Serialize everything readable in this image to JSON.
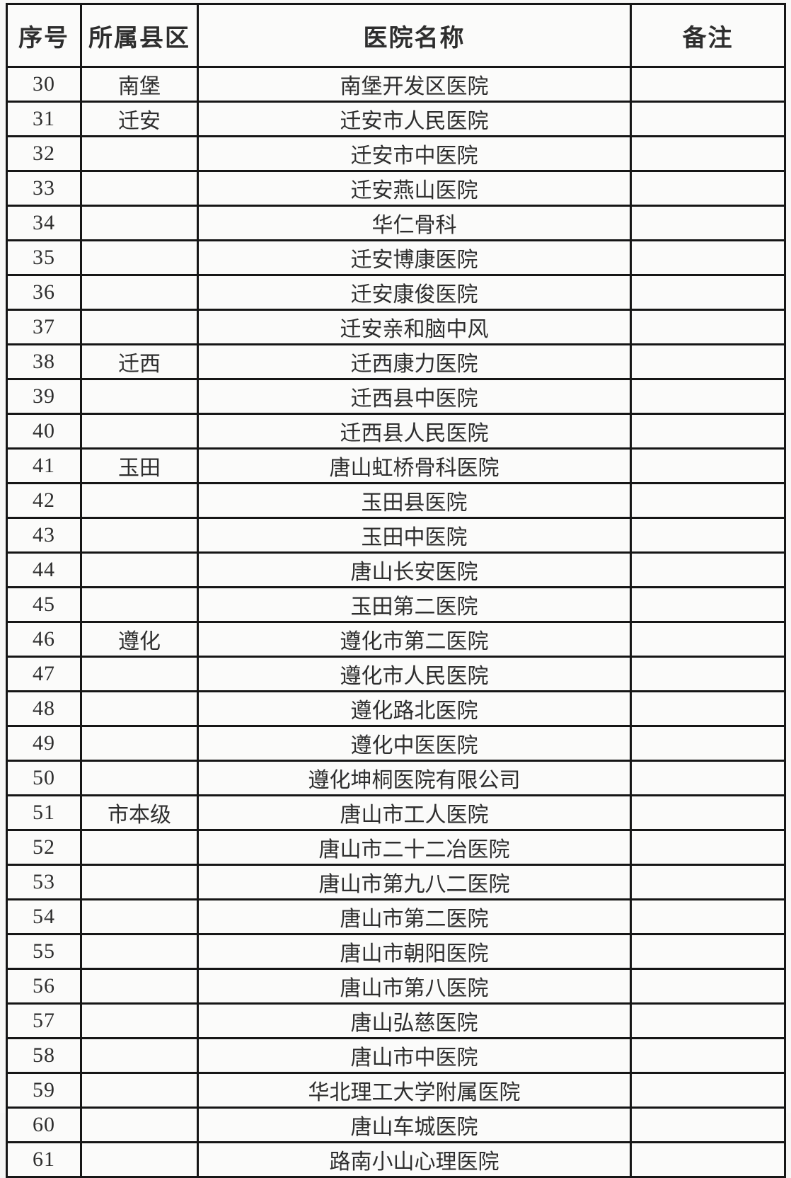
{
  "table": {
    "colors": {
      "border": "#161616",
      "text": "#2e2e2e",
      "background": "#fbfbfa"
    },
    "columns": [
      {
        "key": "index",
        "label": "序号"
      },
      {
        "key": "county",
        "label": "所属县区"
      },
      {
        "key": "hospital",
        "label": "医院名称"
      },
      {
        "key": "remark",
        "label": "备注"
      }
    ],
    "rows": [
      {
        "index": "30",
        "county": "南堡",
        "hospital": "南堡开发区医院",
        "remark": ""
      },
      {
        "index": "31",
        "county": "迁安",
        "hospital": "迁安市人民医院",
        "remark": ""
      },
      {
        "index": "32",
        "county": "",
        "hospital": "迁安市中医院",
        "remark": ""
      },
      {
        "index": "33",
        "county": "",
        "hospital": "迁安燕山医院",
        "remark": ""
      },
      {
        "index": "34",
        "county": "",
        "hospital": "华仁骨科",
        "remark": ""
      },
      {
        "index": "35",
        "county": "",
        "hospital": "迁安博康医院",
        "remark": ""
      },
      {
        "index": "36",
        "county": "",
        "hospital": "迁安康俊医院",
        "remark": ""
      },
      {
        "index": "37",
        "county": "",
        "hospital": "迁安亲和脑中风",
        "remark": ""
      },
      {
        "index": "38",
        "county": "迁西",
        "hospital": "迁西康力医院",
        "remark": ""
      },
      {
        "index": "39",
        "county": "",
        "hospital": "迁西县中医院",
        "remark": ""
      },
      {
        "index": "40",
        "county": "",
        "hospital": "迁西县人民医院",
        "remark": ""
      },
      {
        "index": "41",
        "county": "玉田",
        "hospital": "唐山虹桥骨科医院",
        "remark": ""
      },
      {
        "index": "42",
        "county": "",
        "hospital": "玉田县医院",
        "remark": ""
      },
      {
        "index": "43",
        "county": "",
        "hospital": "玉田中医院",
        "remark": ""
      },
      {
        "index": "44",
        "county": "",
        "hospital": "唐山长安医院",
        "remark": ""
      },
      {
        "index": "45",
        "county": "",
        "hospital": "玉田第二医院",
        "remark": ""
      },
      {
        "index": "46",
        "county": "遵化",
        "hospital": "遵化市第二医院",
        "remark": ""
      },
      {
        "index": "47",
        "county": "",
        "hospital": "遵化市人民医院",
        "remark": ""
      },
      {
        "index": "48",
        "county": "",
        "hospital": "遵化路北医院",
        "remark": ""
      },
      {
        "index": "49",
        "county": "",
        "hospital": "遵化中医医院",
        "remark": ""
      },
      {
        "index": "50",
        "county": "",
        "hospital": "遵化坤桐医院有限公司",
        "remark": ""
      },
      {
        "index": "51",
        "county": "市本级",
        "hospital": "唐山市工人医院",
        "remark": ""
      },
      {
        "index": "52",
        "county": "",
        "hospital": "唐山市二十二冶医院",
        "remark": ""
      },
      {
        "index": "53",
        "county": "",
        "hospital": "唐山市第九八二医院",
        "remark": ""
      },
      {
        "index": "54",
        "county": "",
        "hospital": "唐山市第二医院",
        "remark": ""
      },
      {
        "index": "55",
        "county": "",
        "hospital": "唐山市朝阳医院",
        "remark": ""
      },
      {
        "index": "56",
        "county": "",
        "hospital": "唐山市第八医院",
        "remark": ""
      },
      {
        "index": "57",
        "county": "",
        "hospital": "唐山弘慈医院",
        "remark": ""
      },
      {
        "index": "58",
        "county": "",
        "hospital": "唐山市中医院",
        "remark": ""
      },
      {
        "index": "59",
        "county": "",
        "hospital": "华北理工大学附属医院",
        "remark": ""
      },
      {
        "index": "60",
        "county": "",
        "hospital": "唐山车城医院",
        "remark": ""
      },
      {
        "index": "61",
        "county": "",
        "hospital": "路南小山心理医院",
        "remark": ""
      }
    ]
  }
}
